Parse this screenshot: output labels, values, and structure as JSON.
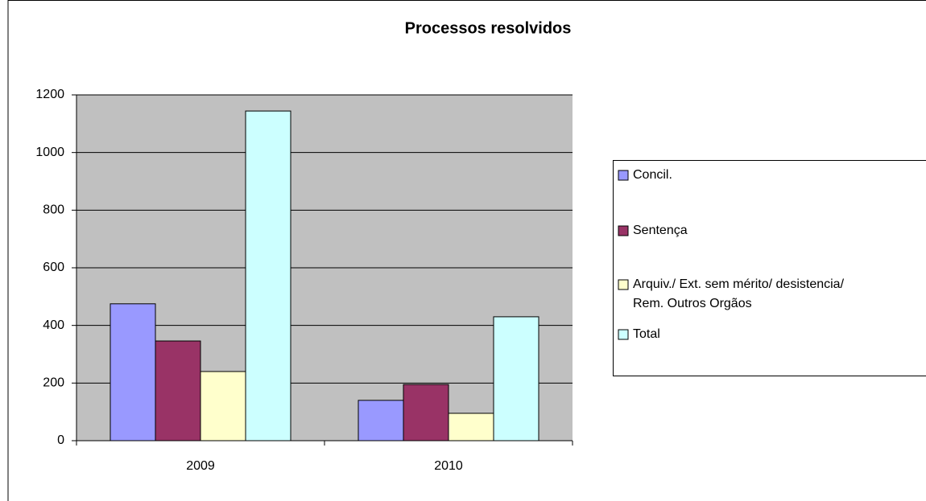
{
  "chart_data": {
    "type": "bar",
    "title": "Processos resolvidos",
    "categories": [
      "2009",
      "2010"
    ],
    "series": [
      {
        "name": "Concil.",
        "color": "#9999ff",
        "values": [
          475,
          140
        ]
      },
      {
        "name": "Sentença",
        "color": "#993366",
        "values": [
          346,
          195
        ]
      },
      {
        "name": "Arquiv./ Ext. sem mérito/ desistencia/ Rem. Outros Orgãos",
        "color": "#ffffcc",
        "values": [
          240,
          95
        ]
      },
      {
        "name": "Total",
        "color": "#ccffff",
        "values": [
          1144,
          430
        ]
      }
    ],
    "ylim": [
      0,
      1200
    ],
    "yticks": [
      0,
      200,
      400,
      600,
      800,
      1000,
      1200
    ],
    "grid": true,
    "legend": "right"
  }
}
